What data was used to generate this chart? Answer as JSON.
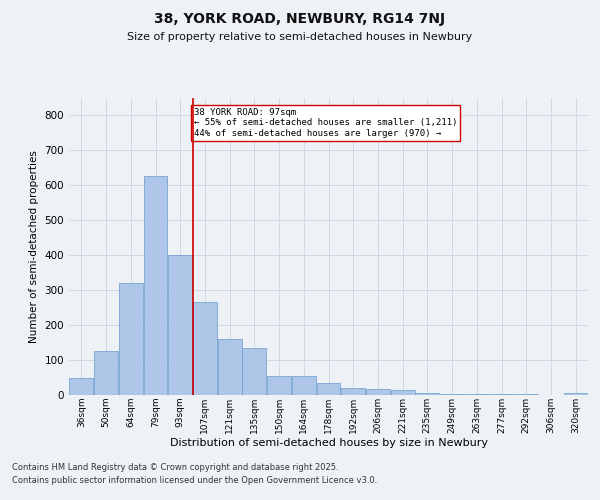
{
  "title": "38, YORK ROAD, NEWBURY, RG14 7NJ",
  "subtitle": "Size of property relative to semi-detached houses in Newbury",
  "xlabel": "Distribution of semi-detached houses by size in Newbury",
  "ylabel": "Number of semi-detached properties",
  "property_label": "38 YORK ROAD: 97sqm",
  "annotation_line1": "← 55% of semi-detached houses are smaller (1,211)",
  "annotation_line2": "44% of semi-detached houses are larger (970) →",
  "footer_line1": "Contains HM Land Registry data © Crown copyright and database right 2025.",
  "footer_line2": "Contains public sector information licensed under the Open Government Licence v3.0.",
  "bar_color": "#aec6e8",
  "bar_edge_color": "#6699cc",
  "vline_color": "#cc0000",
  "background_color": "#eef2f7",
  "categories": [
    "36sqm",
    "50sqm",
    "64sqm",
    "79sqm",
    "93sqm",
    "107sqm",
    "121sqm",
    "135sqm",
    "150sqm",
    "164sqm",
    "178sqm",
    "192sqm",
    "206sqm",
    "221sqm",
    "235sqm",
    "249sqm",
    "263sqm",
    "277sqm",
    "292sqm",
    "306sqm",
    "320sqm"
  ],
  "values": [
    50,
    125,
    320,
    625,
    400,
    265,
    160,
    133,
    55,
    55,
    35,
    20,
    18,
    13,
    5,
    3,
    2,
    2,
    2,
    1,
    7
  ],
  "ylim": [
    0,
    850
  ],
  "yticks": [
    0,
    100,
    200,
    300,
    400,
    500,
    600,
    700,
    800
  ],
  "vline_position": 4.5,
  "grid_color": "#d0d8e4"
}
